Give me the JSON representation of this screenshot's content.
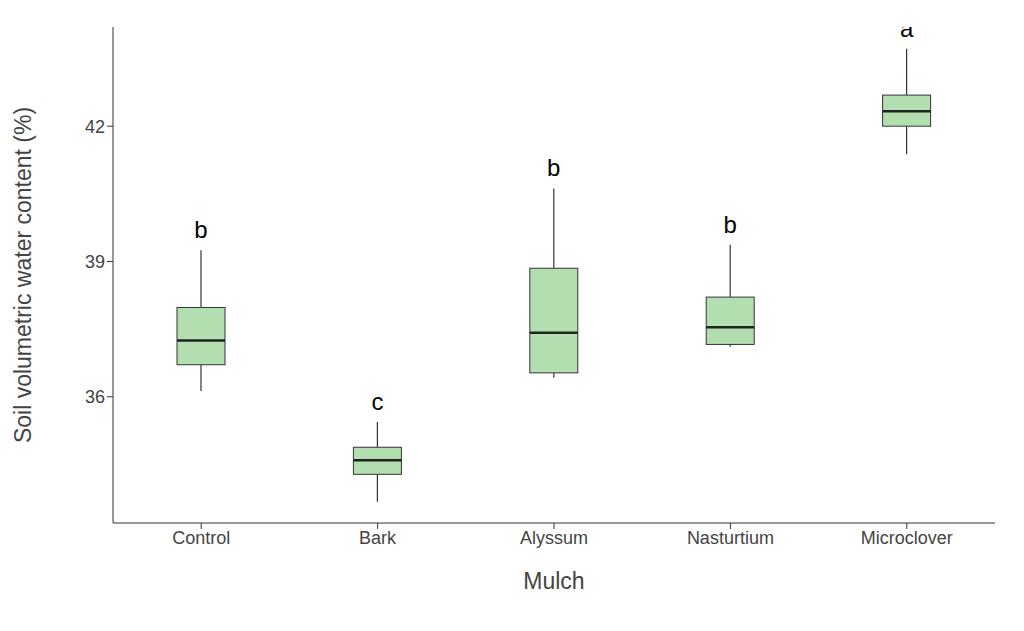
{
  "chart_data": {
    "type": "box",
    "x_label": "Mulch",
    "y_label": "Soil volumetric water content (%)",
    "categories": [
      "Control",
      "Bark",
      "Alyssum",
      "Nasturtium",
      "Microclover"
    ],
    "min": [
      36.13,
      33.67,
      36.42,
      37.11,
      41.38
    ],
    "q1": [
      36.71,
      34.28,
      36.53,
      37.16,
      42.0
    ],
    "median": [
      37.25,
      34.59,
      37.42,
      37.54,
      42.33
    ],
    "q3": [
      37.98,
      34.88,
      38.85,
      38.21,
      42.69
    ],
    "max": [
      39.25,
      35.44,
      40.62,
      39.37,
      43.72
    ],
    "annotations": [
      "b",
      "c",
      "b",
      "b",
      "a"
    ],
    "color": "#b3deb0",
    "ylim": [
      33.2,
      44.2
    ],
    "yticks": [
      36,
      39,
      42
    ],
    "grid": false
  }
}
